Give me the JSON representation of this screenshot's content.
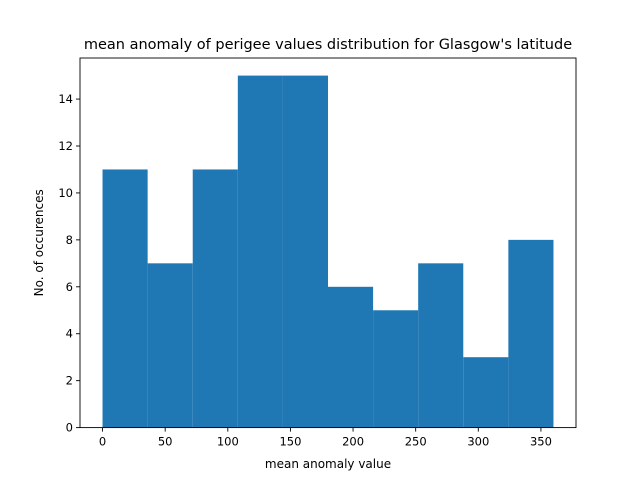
{
  "chart_data": {
    "type": "bar",
    "title": "mean anomaly of perigee values distribution for Glasgow's latitude",
    "xlabel": "mean anomaly value",
    "ylabel": "No. of occurences",
    "xlim": [
      -18,
      378
    ],
    "ylim": [
      0,
      15.75
    ],
    "x_ticks": [
      0,
      50,
      100,
      150,
      200,
      250,
      300,
      350
    ],
    "y_ticks": [
      0,
      2,
      4,
      6,
      8,
      10,
      12,
      14
    ],
    "bin_edges": [
      0,
      36,
      72,
      108,
      144,
      180,
      216,
      252,
      288,
      324,
      360
    ],
    "values": [
      11,
      7,
      11,
      15,
      15,
      6,
      5,
      7,
      3,
      8
    ],
    "bar_color": "#1f77b4",
    "grid": false
  }
}
